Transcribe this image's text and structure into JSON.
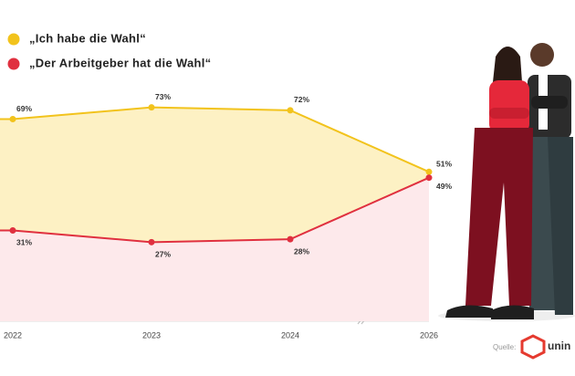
{
  "chart_data": {
    "type": "area",
    "categories": [
      "2022",
      "2023",
      "2024",
      "2026"
    ],
    "series": [
      {
        "name": "„Ich habe die Wahl“",
        "color": "#f2c31c",
        "fill": "#fdf1c4",
        "values": [
          69,
          73,
          72,
          51
        ],
        "value_labels": [
          "69%",
          "73%",
          "72%",
          "51%"
        ]
      },
      {
        "name": "„Der Arbeitgeber hat die Wahl“",
        "color": "#e0303f",
        "fill": "#fde9eb",
        "values": [
          31,
          27,
          28,
          49
        ],
        "value_labels": [
          "31%",
          "27%",
          "28%",
          "49%"
        ]
      }
    ],
    "source_label": "Quelle:",
    "logo": "unin"
  }
}
